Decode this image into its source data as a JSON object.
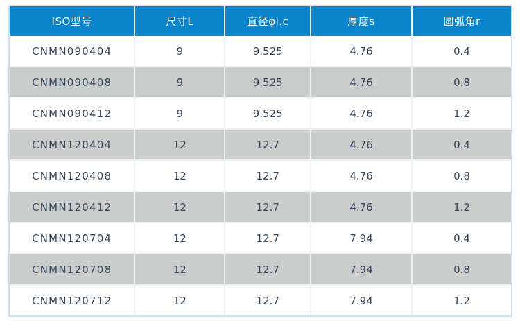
{
  "table": {
    "columns": [
      {
        "key": "iso_model",
        "label": "ISO型号"
      },
      {
        "key": "size_l",
        "label": "尺寸L"
      },
      {
        "key": "diameter",
        "label": "直径φi.c"
      },
      {
        "key": "thickness",
        "label": "厚度s"
      },
      {
        "key": "arc_angle",
        "label": "圆弧角r"
      }
    ],
    "rows": [
      [
        "CNMN090404",
        "9",
        "9.525",
        "4.76",
        "0.4"
      ],
      [
        "CNMN090408",
        "9",
        "9.525",
        "4.76",
        "0.8"
      ],
      [
        "CNMN090412",
        "9",
        "9.525",
        "4.76",
        "1.2"
      ],
      [
        "CNMN120404",
        "12",
        "12.7",
        "4.76",
        "0.4"
      ],
      [
        "CNMN120408",
        "12",
        "12.7",
        "4.76",
        "0.8"
      ],
      [
        "CNMN120412",
        "12",
        "12.7",
        "4.76",
        "1.2"
      ],
      [
        "CNMN120704",
        "12",
        "12.7",
        "7.94",
        "0.4"
      ],
      [
        "CNMN120708",
        "12",
        "12.7",
        "7.94",
        "0.8"
      ],
      [
        "CNMN120712",
        "12",
        "12.7",
        "7.94",
        "1.2"
      ]
    ]
  },
  "colors": {
    "header_bg": "#0b86cd",
    "header_text": "#ffffff",
    "header_separator": "#ffffff",
    "row_bg": "#ffffff",
    "row_alt_bg": "#cbcdcc",
    "cell_separator": "#ecf1f6",
    "outer_border": "#cde1f0",
    "body_text": "#37475a"
  }
}
